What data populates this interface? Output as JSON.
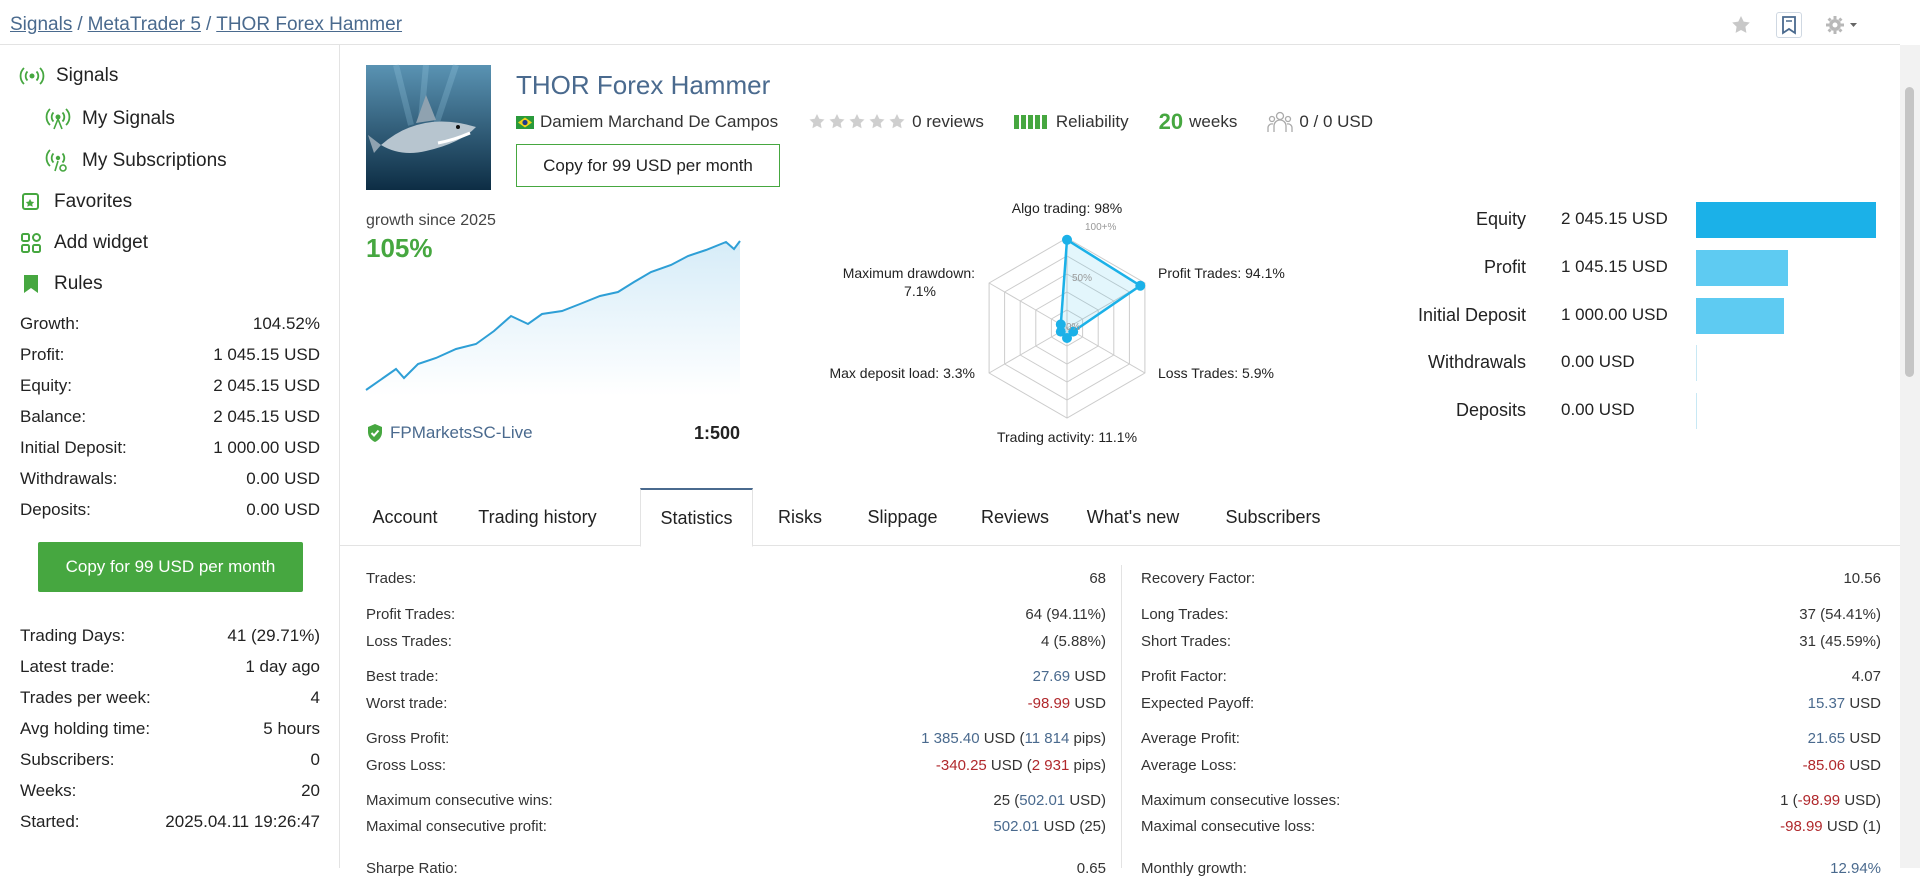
{
  "breadcrumb": [
    "Signals",
    "MetaTrader 5",
    "THOR Forex Hammer"
  ],
  "sidebar": {
    "nav": [
      {
        "label": "Signals",
        "icon": "signal-icon"
      },
      {
        "label": "My Signals",
        "icon": "signal-icon"
      },
      {
        "label": "My Subscriptions",
        "icon": "subscription-icon"
      },
      {
        "label": "Favorites",
        "icon": "favorites-icon"
      },
      {
        "label": "Add widget",
        "icon": "widget-icon"
      },
      {
        "label": "Rules",
        "icon": "rules-icon"
      }
    ],
    "stats": [
      {
        "label": "Growth:",
        "value": "104.52%"
      },
      {
        "label": "Profit:",
        "value": "1 045.15 USD"
      },
      {
        "label": "Equity:",
        "value": "2 045.15 USD"
      },
      {
        "label": "Balance:",
        "value": "2 045.15 USD"
      },
      {
        "label": "Initial Deposit:",
        "value": "1 000.00 USD"
      },
      {
        "label": "Withdrawals:",
        "value": "0.00 USD"
      },
      {
        "label": "Deposits:",
        "value": "0.00 USD"
      }
    ],
    "copy_button": "Copy for 99 USD per month",
    "stats2": [
      {
        "label": "Trading Days:",
        "value": "41 (29.71%)"
      },
      {
        "label": "Latest trade:",
        "value": "1 day ago"
      },
      {
        "label": "Trades per week:",
        "value": "4"
      },
      {
        "label": "Avg holding time:",
        "value": "5 hours"
      },
      {
        "label": "Subscribers:",
        "value": "0"
      },
      {
        "label": "Weeks:",
        "value": "20"
      },
      {
        "label": "Started:",
        "value": "2025.04.11 19:26:47"
      }
    ]
  },
  "header": {
    "title": "THOR Forex Hammer",
    "author": "Damiem Marchand De Campos",
    "reviews": "0 reviews",
    "reliability": "Reliability",
    "weeks_num": "20",
    "weeks_label": "weeks",
    "subscribers": "0 / 0 USD",
    "copy_button": "Copy for 99 USD per month"
  },
  "growth": {
    "label": "growth since 2025",
    "value": "105%",
    "broker": "FPMarketsSC-Live",
    "leverage": "1:500"
  },
  "radar": {
    "labels": {
      "algo": "Algo trading: 98%",
      "profit": "Profit Trades: 94.1%",
      "loss": "Loss Trades: 5.9%",
      "activity": "Trading activity: 11.1%",
      "load": "Max deposit load: 3.3%",
      "drawdown1": "Maximum drawdown:",
      "drawdown2": "7.1%"
    },
    "scale": {
      "p100": "100+%",
      "p50": "50%",
      "p0": "0%"
    },
    "values": {
      "algo": 98,
      "profit": 94.1,
      "loss": 5.9,
      "activity": 11.1,
      "load": 3.3,
      "drawdown": 7.1
    }
  },
  "equity_bars": [
    {
      "label": "Equity",
      "value": "2 045.15 USD",
      "amount": 2045.15,
      "color": "#1bb1e8"
    },
    {
      "label": "Profit",
      "value": "1 045.15 USD",
      "amount": 1045.15,
      "color": "#5ecbf2"
    },
    {
      "label": "Initial Deposit",
      "value": "1 000.00 USD",
      "amount": 1000.0,
      "color": "#5ecbf2"
    },
    {
      "label": "Withdrawals",
      "value": "0.00 USD",
      "amount": 0,
      "color": "#5ecbf2"
    },
    {
      "label": "Deposits",
      "value": "0.00 USD",
      "amount": 0,
      "color": "#5ecbf2"
    }
  ],
  "tabs": [
    "Account",
    "Trading history",
    "Statistics",
    "Risks",
    "Slippage",
    "Reviews",
    "What's new",
    "Subscribers"
  ],
  "active_tab": "Statistics",
  "statistics_left": [
    {
      "label": "Trades:",
      "parts": [
        {
          "t": "68"
        }
      ]
    },
    {
      "label": "Profit Trades:",
      "parts": [
        {
          "t": "64 (94.11%)"
        }
      ]
    },
    {
      "label": "Loss Trades:",
      "parts": [
        {
          "t": "4 (5.88%)"
        }
      ]
    },
    {
      "label": "Best trade:",
      "parts": [
        {
          "t": "27.69",
          "c": "blue"
        },
        {
          "t": " USD"
        }
      ]
    },
    {
      "label": "Worst trade:",
      "parts": [
        {
          "t": "-98.99",
          "c": "red"
        },
        {
          "t": " USD"
        }
      ]
    },
    {
      "label": "Gross Profit:",
      "parts": [
        {
          "t": "1 385.40",
          "c": "blue"
        },
        {
          "t": " USD ("
        },
        {
          "t": "11 814",
          "c": "blue"
        },
        {
          "t": " pips)"
        }
      ]
    },
    {
      "label": "Gross Loss:",
      "parts": [
        {
          "t": "-340.25",
          "c": "red"
        },
        {
          "t": " USD ("
        },
        {
          "t": "2 931",
          "c": "red"
        },
        {
          "t": " pips)"
        }
      ]
    },
    {
      "label": "Maximum consecutive wins:",
      "parts": [
        {
          "t": "25 ("
        },
        {
          "t": "502.01",
          "c": "blue"
        },
        {
          "t": " USD)"
        }
      ]
    },
    {
      "label": "Maximal consecutive profit:",
      "parts": [
        {
          "t": "502.01",
          "c": "blue"
        },
        {
          "t": " USD (25)"
        }
      ]
    },
    {
      "label": "Sharpe Ratio:",
      "parts": [
        {
          "t": "0.65"
        }
      ]
    }
  ],
  "statistics_right": [
    {
      "label": "Recovery Factor:",
      "parts": [
        {
          "t": "10.56"
        }
      ]
    },
    {
      "label": "Long Trades:",
      "parts": [
        {
          "t": "37 (54.41%)"
        }
      ]
    },
    {
      "label": "Short Trades:",
      "parts": [
        {
          "t": "31 (45.59%)"
        }
      ]
    },
    {
      "label": "Profit Factor:",
      "parts": [
        {
          "t": "4.07"
        }
      ]
    },
    {
      "label": "Expected Payoff:",
      "parts": [
        {
          "t": "15.37",
          "c": "blue"
        },
        {
          "t": " USD"
        }
      ]
    },
    {
      "label": "Average Profit:",
      "parts": [
        {
          "t": "21.65",
          "c": "blue"
        },
        {
          "t": " USD"
        }
      ]
    },
    {
      "label": "Average Loss:",
      "parts": [
        {
          "t": "-85.06",
          "c": "red"
        },
        {
          "t": " USD"
        }
      ]
    },
    {
      "label": "Maximum consecutive losses:",
      "parts": [
        {
          "t": "1 ("
        },
        {
          "t": "-98.99",
          "c": "red"
        },
        {
          "t": " USD)"
        }
      ]
    },
    {
      "label": "Maximal consecutive loss:",
      "parts": [
        {
          "t": "-98.99",
          "c": "red"
        },
        {
          "t": " USD (1)"
        }
      ]
    },
    {
      "label": "Monthly growth:",
      "parts": [
        {
          "t": "12.94%",
          "c": "blue"
        }
      ]
    }
  ]
}
